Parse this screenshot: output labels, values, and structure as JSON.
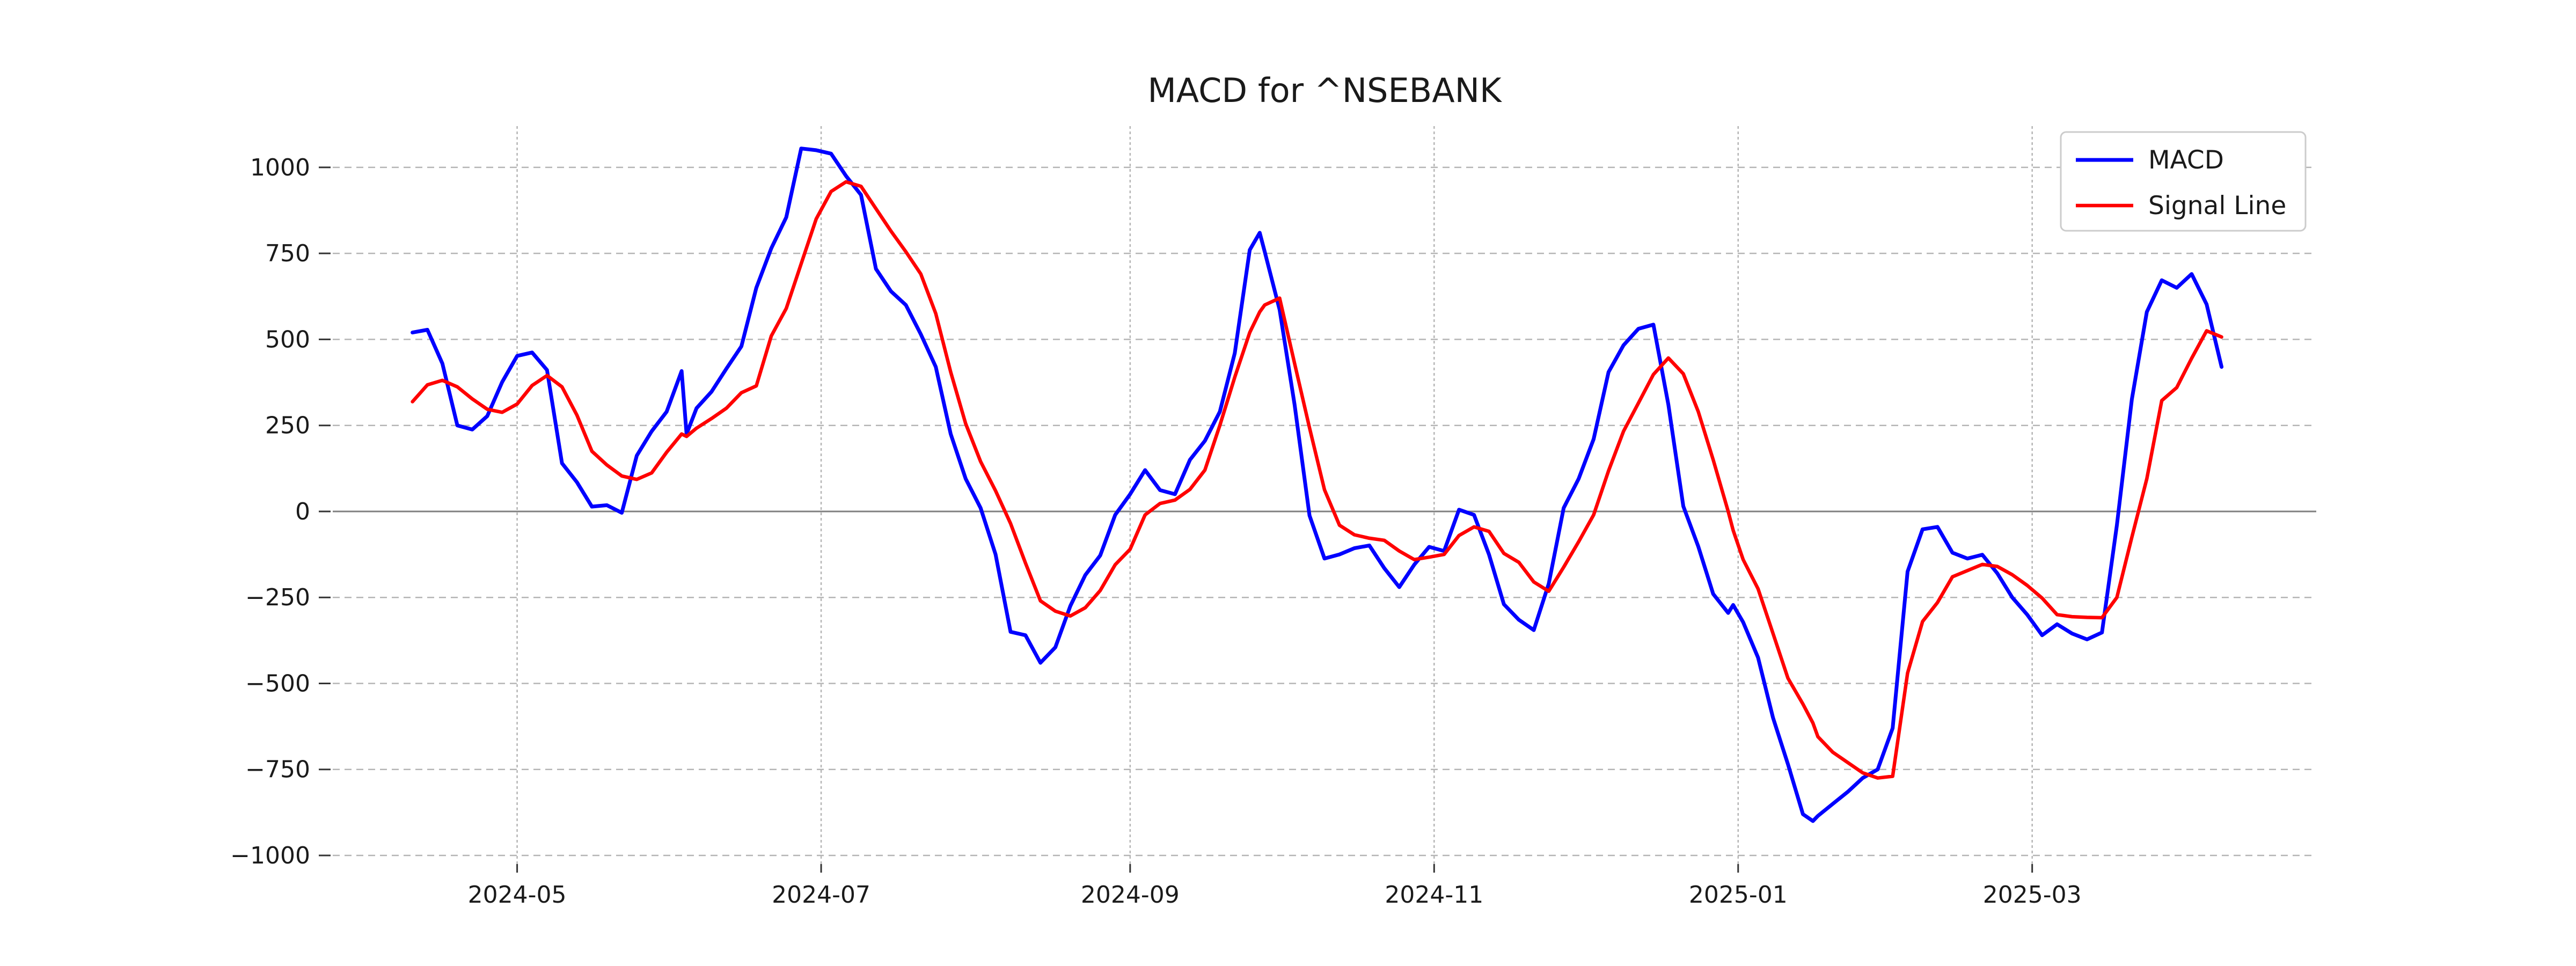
{
  "title": "MACD for ^NSEBANK",
  "legend": {
    "position": "upper right",
    "items": [
      {
        "label": "MACD",
        "color": "#0000ff"
      },
      {
        "label": "Signal Line",
        "color": "#ff0000"
      }
    ]
  },
  "axes": {
    "x_tick_labels": [
      "2024-05",
      "2024-07",
      "2024-09",
      "2024-11",
      "2025-01",
      "2025-03"
    ],
    "y_tick_labels": [
      "1000",
      "750",
      "500",
      "250",
      "0",
      "−250",
      "−500",
      "−750",
      "−1000"
    ]
  },
  "chart_data": {
    "type": "line",
    "title": "MACD for ^NSEBANK",
    "xlabel": "",
    "ylabel": "",
    "grid": true,
    "zero_line": true,
    "legend_position": "upper right",
    "xlim": [
      "2024-03-25",
      "2025-04-27"
    ],
    "ylim": [
      -1025,
      1120
    ],
    "x_ticks": [
      {
        "date": "2024-05-01",
        "label": "2024-05"
      },
      {
        "date": "2024-07-01",
        "label": "2024-07"
      },
      {
        "date": "2024-09-01",
        "label": "2024-09"
      },
      {
        "date": "2024-11-01",
        "label": "2024-11"
      },
      {
        "date": "2025-01-01",
        "label": "2025-01"
      },
      {
        "date": "2025-03-01",
        "label": "2025-03"
      }
    ],
    "y_ticks": [
      {
        "value": 1000,
        "label": "1000"
      },
      {
        "value": 750,
        "label": "750"
      },
      {
        "value": 500,
        "label": "500"
      },
      {
        "value": 250,
        "label": "250"
      },
      {
        "value": 0,
        "label": "0"
      },
      {
        "value": -250,
        "label": "−250"
      },
      {
        "value": -500,
        "label": "−500"
      },
      {
        "value": -750,
        "label": "−750"
      },
      {
        "value": -1000,
        "label": "−1000"
      }
    ],
    "x": [
      "2024-04-10",
      "2024-04-13",
      "2024-04-16",
      "2024-04-19",
      "2024-04-22",
      "2024-04-25",
      "2024-04-28",
      "2024-05-01",
      "2024-05-04",
      "2024-05-07",
      "2024-05-10",
      "2024-05-13",
      "2024-05-16",
      "2024-05-19",
      "2024-05-22",
      "2024-05-25",
      "2024-05-28",
      "2024-05-31",
      "2024-06-03",
      "2024-06-04",
      "2024-06-06",
      "2024-06-09",
      "2024-06-12",
      "2024-06-15",
      "2024-06-18",
      "2024-06-21",
      "2024-06-24",
      "2024-06-27",
      "2024-06-30",
      "2024-07-03",
      "2024-07-06",
      "2024-07-09",
      "2024-07-12",
      "2024-07-15",
      "2024-07-18",
      "2024-07-21",
      "2024-07-24",
      "2024-07-27",
      "2024-07-30",
      "2024-08-02",
      "2024-08-05",
      "2024-08-08",
      "2024-08-11",
      "2024-08-14",
      "2024-08-17",
      "2024-08-20",
      "2024-08-23",
      "2024-08-26",
      "2024-08-29",
      "2024-09-01",
      "2024-09-04",
      "2024-09-07",
      "2024-09-10",
      "2024-09-13",
      "2024-09-16",
      "2024-09-19",
      "2024-09-22",
      "2024-09-25",
      "2024-09-27",
      "2024-09-28",
      "2024-10-01",
      "2024-10-04",
      "2024-10-07",
      "2024-10-10",
      "2024-10-13",
      "2024-10-16",
      "2024-10-19",
      "2024-10-22",
      "2024-10-25",
      "2024-10-28",
      "2024-10-31",
      "2024-11-03",
      "2024-11-06",
      "2024-11-09",
      "2024-11-12",
      "2024-11-15",
      "2024-11-18",
      "2024-11-21",
      "2024-11-24",
      "2024-11-27",
      "2024-11-30",
      "2024-12-03",
      "2024-12-06",
      "2024-12-09",
      "2024-12-12",
      "2024-12-15",
      "2024-12-18",
      "2024-12-21",
      "2024-12-24",
      "2024-12-27",
      "2024-12-30",
      "2024-12-31",
      "2025-01-02",
      "2025-01-05",
      "2025-01-08",
      "2025-01-11",
      "2025-01-14",
      "2025-01-16",
      "2025-01-17",
      "2025-01-20",
      "2025-01-23",
      "2025-01-26",
      "2025-01-29",
      "2025-02-01",
      "2025-02-04",
      "2025-02-07",
      "2025-02-10",
      "2025-02-13",
      "2025-02-16",
      "2025-02-19",
      "2025-02-22",
      "2025-02-25",
      "2025-02-28",
      "2025-03-03",
      "2025-03-06",
      "2025-03-09",
      "2025-03-12",
      "2025-03-15",
      "2025-03-18",
      "2025-03-21",
      "2025-03-24",
      "2025-03-27",
      "2025-03-30",
      "2025-04-02",
      "2025-04-05",
      "2025-04-08"
    ],
    "series": [
      {
        "name": "MACD",
        "color": "#0000ff",
        "line_width": 7,
        "values": [
          520,
          528,
          430,
          250,
          238,
          277,
          376,
          452,
          462,
          411,
          140,
          85,
          14,
          18,
          -4,
          162,
          233,
          290,
          408,
          225,
          300,
          348,
          415,
          480,
          650,
          765,
          855,
          1055,
          1050,
          1040,
          975,
          920,
          705,
          640,
          600,
          515,
          420,
          225,
          95,
          10,
          -125,
          -350,
          -360,
          -440,
          -395,
          -275,
          -185,
          -128,
          -10,
          50,
          120,
          62,
          50,
          150,
          205,
          290,
          460,
          760,
          810,
          755,
          586,
          310,
          -12,
          -137,
          -125,
          -107,
          -99,
          -165,
          -220,
          -155,
          -103,
          -115,
          5,
          -10,
          -125,
          -270,
          -315,
          -345,
          -210,
          10,
          95,
          210,
          405,
          483,
          531,
          543,
          310,
          15,
          -102,
          -240,
          -295,
          -272,
          -322,
          -425,
          -600,
          -735,
          -880,
          -900,
          -885,
          -850,
          -815,
          -775,
          -750,
          -630,
          -175,
          -52,
          -45,
          -120,
          -137,
          -126,
          -180,
          -250,
          -300,
          -360,
          -328,
          -355,
          -372,
          -352,
          -40,
          326,
          580,
          672,
          650,
          690,
          602,
          420
        ]
      },
      {
        "name": "Signal Line",
        "color": "#ff0000",
        "line_width": 6.5,
        "values": [
          319,
          368,
          381,
          362,
          327,
          297,
          288,
          312,
          366,
          395,
          362,
          280,
          175,
          135,
          103,
          93,
          112,
          172,
          225,
          218,
          242,
          270,
          300,
          345,
          365,
          510,
          590,
          720,
          850,
          930,
          958,
          945,
          880,
          815,
          755,
          690,
          575,
          405,
          255,
          145,
          60,
          -35,
          -150,
          -260,
          -290,
          -304,
          -280,
          -230,
          -155,
          -110,
          -10,
          23,
          33,
          64,
          120,
          250,
          390,
          520,
          580,
          600,
          620,
          430,
          243,
          63,
          -40,
          -68,
          -78,
          -84,
          -115,
          -140,
          -133,
          -125,
          -70,
          -45,
          -58,
          -122,
          -148,
          -205,
          -232,
          -162,
          -88,
          -10,
          118,
          233,
          315,
          398,
          446,
          400,
          290,
          150,
          0,
          -55,
          -140,
          -225,
          -355,
          -485,
          -560,
          -615,
          -655,
          -700,
          -730,
          -760,
          -775,
          -770,
          -470,
          -320,
          -265,
          -190,
          -172,
          -154,
          -160,
          -184,
          -215,
          -252,
          -300,
          -306,
          -308,
          -309,
          -250,
          -75,
          95,
          322,
          360,
          445,
          525,
          507
        ]
      }
    ]
  }
}
